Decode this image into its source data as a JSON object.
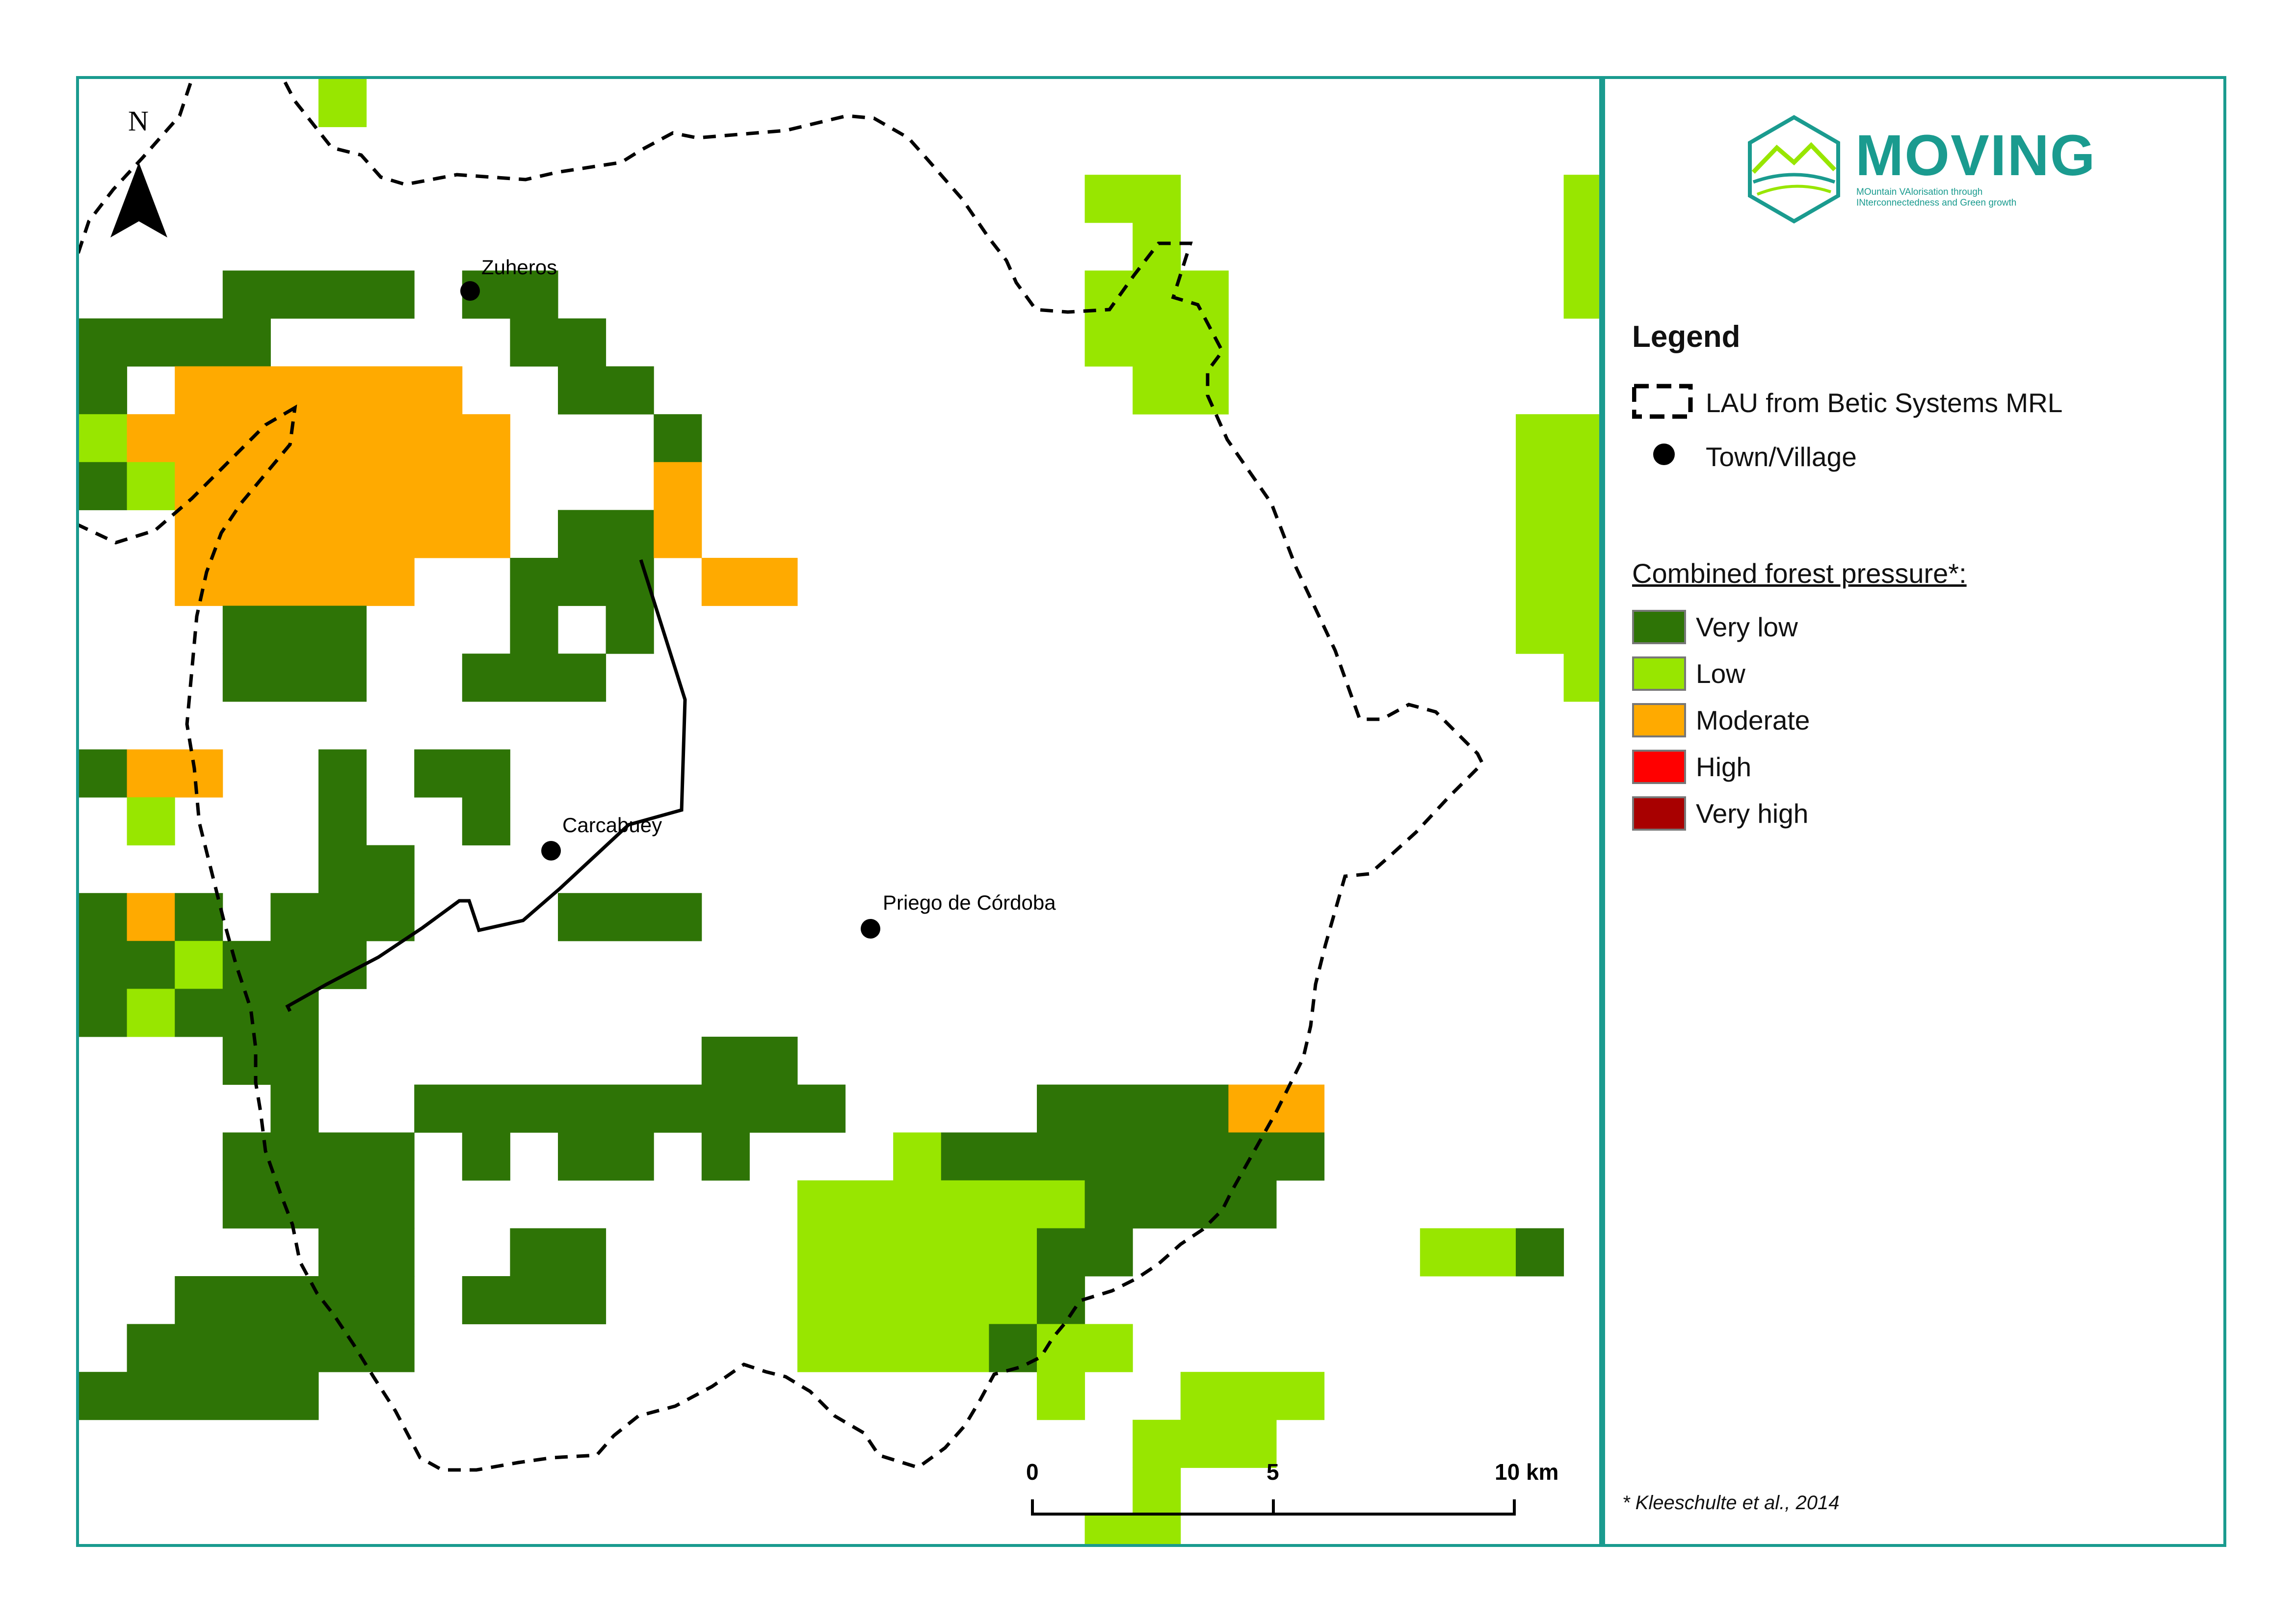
{
  "map": {
    "north_label": "N",
    "towns": [
      {
        "name": "Zuheros"
      },
      {
        "name": "Carcabuey"
      },
      {
        "name": "Priego de Córdoba"
      }
    ],
    "scale": {
      "labels": [
        "0",
        "5",
        "10 km"
      ]
    }
  },
  "logo": {
    "title": "MOVING",
    "subtitle_line1": "MOuntain VAlorisation through",
    "subtitle_line2": "INterconnectedness and Green growth"
  },
  "legend": {
    "title": "Legend",
    "boundary_label": "LAU from Betic Systems MRL",
    "town_label": "Town/Village",
    "pressure_title": "Combined forest pressure*:",
    "classes": [
      {
        "label": "Very low",
        "color": "#2e7406"
      },
      {
        "label": "Low",
        "color": "#98e600"
      },
      {
        "label": "Moderate",
        "color": "#ffaa00"
      },
      {
        "label": "High",
        "color": "#ff0000"
      },
      {
        "label": "Very high",
        "color": "#a80000"
      }
    ]
  },
  "citation": "* Kleeschulte et al., 2014",
  "colors": {
    "frame": "#1a9b8f",
    "boundary": "#000000"
  }
}
